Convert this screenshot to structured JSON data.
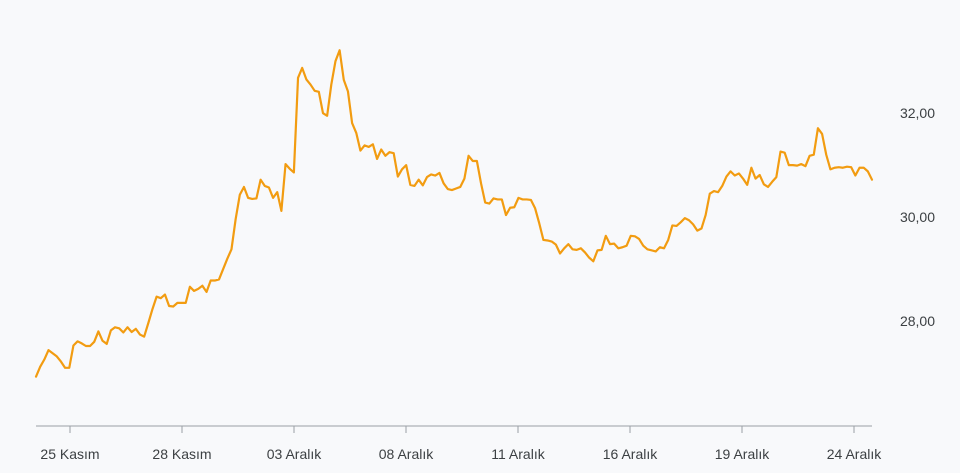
{
  "chart_data": {
    "type": "line",
    "title": "",
    "xlabel": "",
    "ylabel": "",
    "ylim": [
      26.0,
      33.6
    ],
    "grid": false,
    "legend": "none",
    "colors": {
      "line": "#f29c11",
      "axis": "#9aa0a6",
      "text": "#3c4043",
      "background": "#f8f9fb"
    },
    "x_tick_labels": [
      "25 Kasım",
      "28 Kasım",
      "03 Aralık",
      "08 Aralık",
      "11 Aralık",
      "16 Aralık",
      "19 Aralık",
      "24 Aralık"
    ],
    "y_tick_values": [
      28.0,
      30.0,
      32.0
    ],
    "y_tick_labels": [
      "28,00",
      "30,00",
      "32,00"
    ],
    "series": [
      {
        "values": [
          26.93,
          27.12,
          27.26,
          27.44,
          27.38,
          27.32,
          27.22,
          27.1,
          27.1,
          27.53,
          27.61,
          27.57,
          27.52,
          27.52,
          27.6,
          27.8,
          27.62,
          27.56,
          27.82,
          27.88,
          27.86,
          27.78,
          27.88,
          27.79,
          27.85,
          27.74,
          27.7,
          27.96,
          28.23,
          28.47,
          28.44,
          28.51,
          28.29,
          28.28,
          28.35,
          28.35,
          28.35,
          28.66,
          28.58,
          28.62,
          28.68,
          28.56,
          28.78,
          28.78,
          28.8,
          29.0,
          29.2,
          29.38,
          29.96,
          30.43,
          30.58,
          30.37,
          30.35,
          30.36,
          30.72,
          30.6,
          30.57,
          30.37,
          30.48,
          30.12,
          31.02,
          30.93,
          30.86,
          32.68,
          32.87,
          32.65,
          32.55,
          32.43,
          32.41,
          32.0,
          31.95,
          32.55,
          33.0,
          33.21,
          32.64,
          32.42,
          31.81,
          31.62,
          31.28,
          31.38,
          31.35,
          31.4,
          31.12,
          31.3,
          31.18,
          31.25,
          31.23,
          30.78,
          30.92,
          31.0,
          30.62,
          30.6,
          30.72,
          30.61,
          30.77,
          30.82,
          30.8,
          30.85,
          30.65,
          30.54,
          30.52,
          30.55,
          30.58,
          30.74,
          31.18,
          31.08,
          31.08,
          30.65,
          30.28,
          30.26,
          30.36,
          30.34,
          30.34,
          30.04,
          30.18,
          30.19,
          30.37,
          30.34,
          30.34,
          30.33,
          30.17,
          29.88,
          29.56,
          29.55,
          29.53,
          29.47,
          29.3,
          29.4,
          29.48,
          29.38,
          29.37,
          29.4,
          29.32,
          29.22,
          29.15,
          29.36,
          29.37,
          29.64,
          29.48,
          29.49,
          29.4,
          29.42,
          29.45,
          29.64,
          29.63,
          29.58,
          29.45,
          29.38,
          29.36,
          29.34,
          29.42,
          29.4,
          29.56,
          29.84,
          29.83,
          29.9,
          29.98,
          29.94,
          29.86,
          29.74,
          29.78,
          30.04,
          30.45,
          30.5,
          30.48,
          30.6,
          30.78,
          30.88,
          30.8,
          30.84,
          30.74,
          30.62,
          30.95,
          30.74,
          30.81,
          30.63,
          30.58,
          30.68,
          30.77,
          31.26,
          31.24,
          31.0,
          31.0,
          30.99,
          31.02,
          30.98,
          31.18,
          31.2,
          31.71,
          31.6,
          31.2,
          30.92,
          30.95,
          30.96,
          30.95,
          30.97,
          30.96,
          30.8,
          30.95,
          30.95,
          30.88,
          30.72
        ]
      }
    ]
  }
}
